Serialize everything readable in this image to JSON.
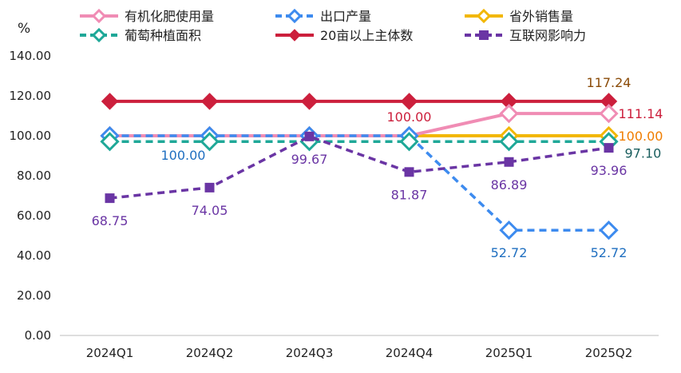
{
  "chart_data": {
    "type": "line",
    "unit_label": "%",
    "categories": [
      "2024Q1",
      "2024Q2",
      "2024Q3",
      "2024Q4",
      "2025Q1",
      "2025Q2"
    ],
    "ylim": [
      0,
      140
    ],
    "yticks": [
      "0.00",
      "20.00",
      "40.00",
      "60.00",
      "80.00",
      "100.00",
      "120.00",
      "140.00"
    ],
    "grid": false,
    "legend_position": "top",
    "series": [
      {
        "name": "有机化肥使用量",
        "color": "#f08cb4",
        "dash": "solid",
        "marker": "diamond-open",
        "values": [
          100.0,
          100.0,
          100.0,
          100.0,
          111.14,
          111.14
        ]
      },
      {
        "name": "出口产量",
        "color": "#3d8bef",
        "dash": "dashed",
        "marker": "diamond-open",
        "values": [
          100.0,
          100.0,
          100.0,
          100.0,
          52.72,
          52.72
        ]
      },
      {
        "name": "省外销售量",
        "color": "#f2b705",
        "dash": "solid",
        "marker": "diamond-open",
        "values": [
          100.0,
          100.0,
          100.0,
          100.0,
          100.0,
          100.0
        ]
      },
      {
        "name": "葡萄种植面积",
        "color": "#1fa898",
        "dash": "dashed",
        "marker": "diamond-open",
        "values": [
          97.1,
          97.1,
          97.1,
          97.1,
          97.1,
          97.1
        ]
      },
      {
        "name": "20亩以上主体数",
        "color": "#cc1f3c",
        "dash": "solid",
        "marker": "diamond-filled",
        "values": [
          117.24,
          117.24,
          117.24,
          117.24,
          117.24,
          117.24
        ]
      },
      {
        "name": "互联网影响力",
        "color": "#6a35a4",
        "dash": "dashed",
        "marker": "square",
        "values": [
          68.75,
          74.05,
          99.67,
          81.87,
          86.89,
          93.96
        ]
      }
    ],
    "annotations": [
      {
        "text": "68.75",
        "color": "#6a35a4",
        "category": "2024Q1",
        "value": 68.75,
        "placement": "below"
      },
      {
        "text": "74.05",
        "color": "#6a35a4",
        "category": "2024Q2",
        "value": 74.05,
        "placement": "below"
      },
      {
        "text": "99.67",
        "color": "#6a35a4",
        "category": "2024Q3",
        "value": 99.67,
        "placement": "below"
      },
      {
        "text": "81.87",
        "color": "#6a35a4",
        "category": "2024Q4",
        "value": 81.87,
        "placement": "below"
      },
      {
        "text": "86.89",
        "color": "#6a35a4",
        "category": "2025Q1",
        "value": 86.89,
        "placement": "below"
      },
      {
        "text": "93.96",
        "color": "#6a35a4",
        "category": "2025Q2",
        "value": 93.96,
        "placement": "below"
      },
      {
        "text": "100.00",
        "color": "#1f6fc0",
        "category": "2024Q2",
        "value": 100.0,
        "placement": "below-left"
      },
      {
        "text": "100.00",
        "color": "#cc1f3c",
        "category": "2024Q4",
        "value": 100.0,
        "placement": "above"
      },
      {
        "text": "52.72",
        "color": "#1f6fc0",
        "category": "2025Q1",
        "value": 52.72,
        "placement": "below"
      },
      {
        "text": "52.72",
        "color": "#1f6fc0",
        "category": "2025Q2",
        "value": 52.72,
        "placement": "below"
      },
      {
        "text": "117.24",
        "color": "#8a4b08",
        "category": "2025Q2",
        "value": 117.24,
        "placement": "above"
      },
      {
        "text": "111.14",
        "color": "#cc1f3c",
        "category": "2025Q2",
        "value": 111.14,
        "placement": "right"
      },
      {
        "text": "100.00",
        "color": "#f07d00",
        "category": "2025Q2",
        "value": 100.0,
        "placement": "right"
      },
      {
        "text": "97.10",
        "color": "#1a5e5e",
        "category": "2025Q2",
        "value": 97.1,
        "placement": "right-below"
      }
    ]
  }
}
